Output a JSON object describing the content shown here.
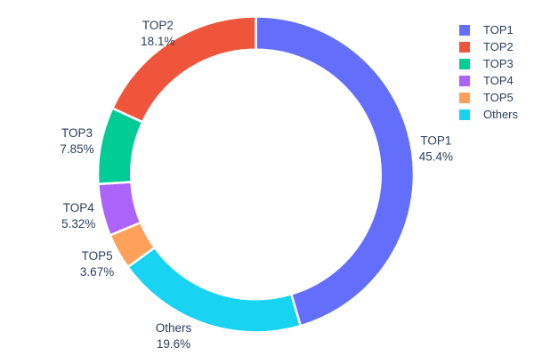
{
  "text_color": "#2a3f5f",
  "background_color": "#ffffff",
  "chart_data": {
    "type": "pie",
    "subtype": "donut",
    "title": "",
    "hole_ratio": 0.79,
    "labels": [
      "TOP1",
      "TOP2",
      "TOP3",
      "TOP4",
      "TOP5",
      "Others"
    ],
    "values_pct": [
      45.4,
      18.1,
      7.85,
      5.32,
      3.67,
      19.6
    ],
    "pct_labels": [
      "45.4%",
      "18.1%",
      "7.85%",
      "5.32%",
      "3.67%",
      "19.6%"
    ],
    "colors": [
      "#636efa",
      "#ef553b",
      "#00cc96",
      "#ab63fa",
      "#ffa15a",
      "#19d3f3"
    ],
    "slice_border_color": "#ffffff",
    "text_position": "outside",
    "legend_position": "right",
    "clockwise_display_order": [
      "TOP1",
      "Others",
      "TOP5",
      "TOP4",
      "TOP3",
      "TOP2"
    ]
  }
}
